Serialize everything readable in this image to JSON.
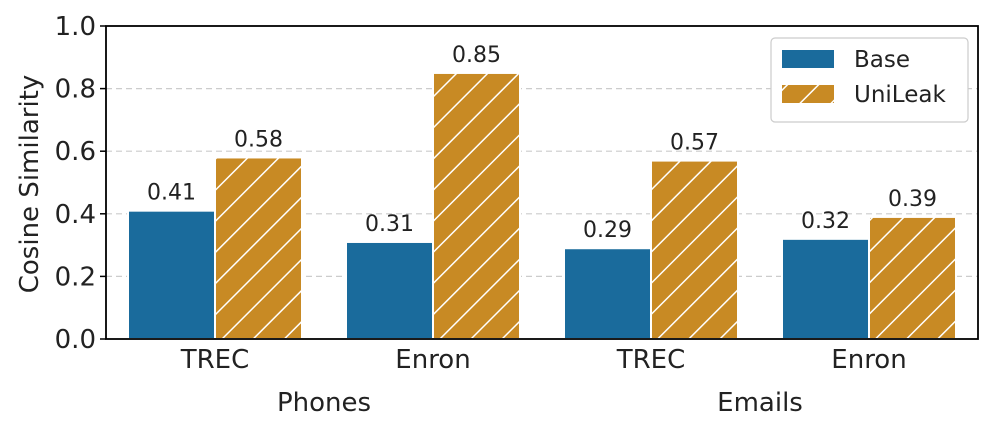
{
  "chart_data": {
    "type": "bar",
    "ylabel": "Cosine Similarity",
    "ylim": [
      0,
      1.0
    ],
    "yticks": [
      "0.0",
      "0.2",
      "0.4",
      "0.6",
      "0.8",
      "1.0"
    ],
    "grid": true,
    "legend_position": "top-right",
    "categories": [
      "TREC",
      "Enron",
      "TREC",
      "Enron"
    ],
    "groups": [
      {
        "label": "Phones",
        "categories": [
          "TREC",
          "Enron"
        ]
      },
      {
        "label": "Emails",
        "categories": [
          "TREC",
          "Enron"
        ]
      }
    ],
    "series": [
      {
        "name": "Base",
        "color": "#1a6b9c",
        "hatch": false,
        "values": [
          0.41,
          0.31,
          0.29,
          0.32
        ],
        "labels": [
          "0.41",
          "0.31",
          "0.29",
          "0.32"
        ]
      },
      {
        "name": "UniLeak",
        "color": "#c88a24",
        "hatch": true,
        "values": [
          0.58,
          0.85,
          0.57,
          0.39
        ],
        "labels": [
          "0.58",
          "0.85",
          "0.57",
          "0.39"
        ]
      }
    ]
  }
}
